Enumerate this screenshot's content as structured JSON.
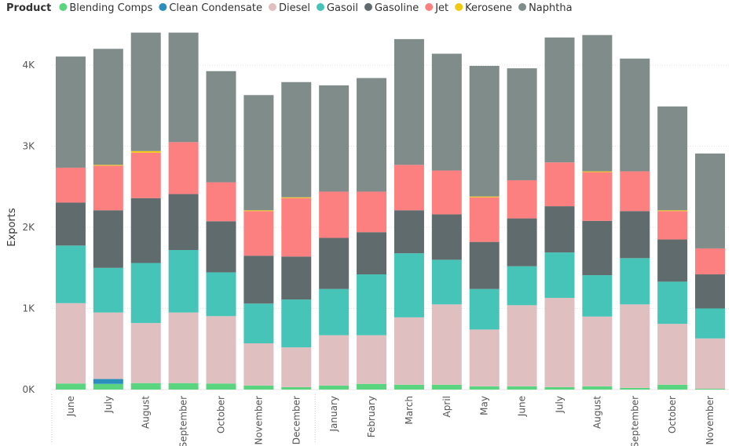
{
  "chart_data": {
    "type": "bar",
    "stacked": true,
    "legend_title": "Product",
    "legend_position": "top-left",
    "ylabel": "Exports",
    "xlabel": "",
    "ylim": [
      0,
      4400
    ],
    "y_ticks": [
      0,
      1000,
      2000,
      3000,
      4000
    ],
    "y_tick_labels": [
      "0K",
      "1K",
      "2K",
      "3K",
      "4K"
    ],
    "grid": true,
    "categories": [
      "June",
      "July",
      "August",
      "September",
      "October",
      "November",
      "December",
      "January",
      "February",
      "March",
      "April",
      "May",
      "June",
      "July",
      "August",
      "September",
      "October",
      "November"
    ],
    "series": [
      {
        "name": "Blending Comps",
        "color": "#5ad47e",
        "values": [
          75,
          70,
          80,
          80,
          75,
          50,
          30,
          50,
          70,
          60,
          60,
          40,
          40,
          30,
          40,
          20,
          60,
          10
        ]
      },
      {
        "name": "Clean Condensate",
        "color": "#2a8fbd",
        "values": [
          0,
          60,
          0,
          0,
          0,
          0,
          0,
          0,
          0,
          0,
          0,
          0,
          0,
          0,
          0,
          0,
          0,
          0
        ]
      },
      {
        "name": "Diesel",
        "color": "#dfbfbf",
        "values": [
          990,
          820,
          740,
          870,
          830,
          520,
          490,
          620,
          600,
          830,
          990,
          700,
          1000,
          1100,
          860,
          1030,
          750,
          620
        ]
      },
      {
        "name": "Gasoil",
        "color": "#47c4b8",
        "values": [
          710,
          550,
          740,
          770,
          540,
          490,
          590,
          570,
          750,
          790,
          550,
          500,
          480,
          560,
          510,
          570,
          520,
          370
        ]
      },
      {
        "name": "Gasoline",
        "color": "#5f6b6d",
        "values": [
          530,
          710,
          800,
          690,
          630,
          590,
          530,
          630,
          520,
          530,
          560,
          580,
          590,
          570,
          670,
          580,
          520,
          420
        ]
      },
      {
        "name": "Jet",
        "color": "#fd8080",
        "values": [
          430,
          550,
          560,
          640,
          480,
          550,
          720,
          570,
          500,
          560,
          540,
          550,
          470,
          540,
          600,
          490,
          350,
          320
        ]
      },
      {
        "name": "Kerosene",
        "color": "#f2c80f",
        "values": [
          0,
          10,
          20,
          0,
          0,
          10,
          10,
          0,
          0,
          0,
          0,
          10,
          0,
          0,
          10,
          0,
          10,
          0
        ]
      },
      {
        "name": "Naphtha",
        "color": "#7f8c8a",
        "values": [
          1370,
          1430,
          1460,
          1350,
          1370,
          1420,
          1420,
          1310,
          1400,
          1550,
          1440,
          1610,
          1380,
          1540,
          1680,
          1390,
          1280,
          1170
        ]
      }
    ],
    "year_groups": [
      {
        "start_index": 0,
        "end_index": 6
      },
      {
        "start_index": 7,
        "end_index": 17
      }
    ]
  }
}
